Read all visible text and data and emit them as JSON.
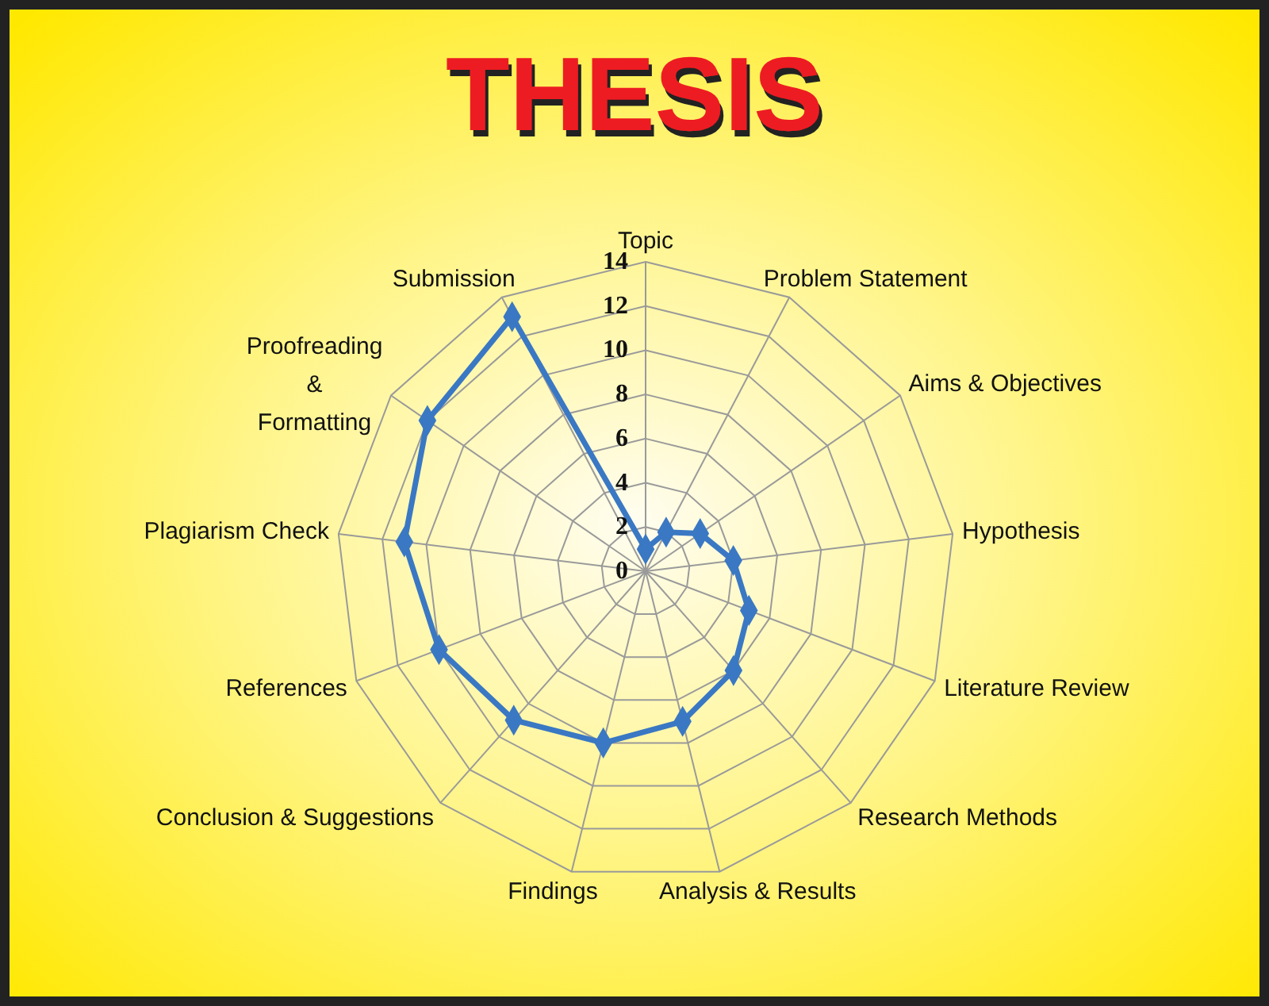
{
  "chart_data": {
    "type": "radar",
    "title": "THESIS",
    "categories": [
      "Topic",
      "Problem Statement",
      "Aims & Objectives",
      "Hypothesis",
      "Literature Review",
      "Research Methods",
      "Analysis & Results",
      "Findings",
      "Conclusion & Suggestions",
      "References",
      "Plagiarism Check",
      "Proofreading\n&\nFormatting",
      "Submission"
    ],
    "series": [
      {
        "color": "#3a78c4",
        "values": [
          1,
          2,
          3,
          4,
          5,
          6,
          7,
          8,
          9,
          10,
          11,
          12,
          13
        ]
      }
    ],
    "ylim": [
      0,
      14
    ],
    "yticks": [
      0,
      2,
      4,
      6,
      8,
      10,
      12,
      14
    ],
    "grid": true,
    "marker": "diamond",
    "line_style": "solid"
  }
}
